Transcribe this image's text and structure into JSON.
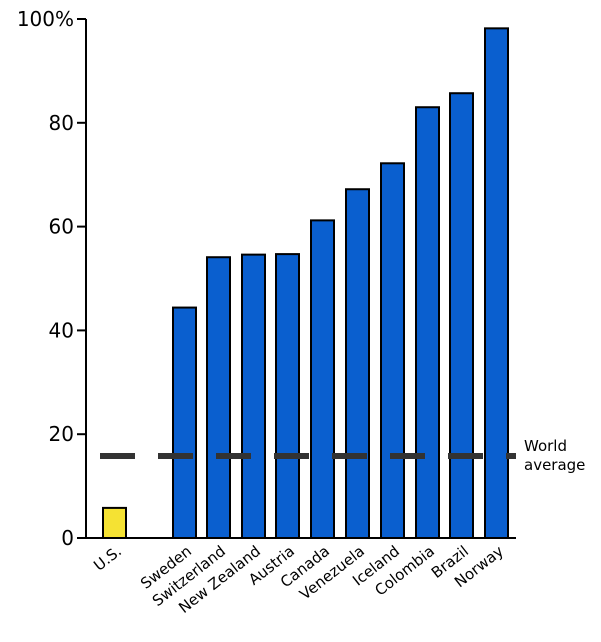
{
  "chart_data": {
    "type": "bar",
    "title": "",
    "xlabel": "",
    "ylabel": "",
    "ylim": [
      0,
      100
    ],
    "y_ticks": [
      0,
      20,
      40,
      60,
      80,
      100
    ],
    "y_tick_labels": [
      "0",
      "20",
      "40",
      "60",
      "80",
      "100%"
    ],
    "categories": [
      "U.S.",
      "Sweden",
      "Switzerland",
      "New Zealand",
      "Austria",
      "Canada",
      "Venezuela",
      "Iceland",
      "Colombia",
      "Brazil",
      "Norway"
    ],
    "values": [
      5.8,
      44.4,
      54.1,
      54.6,
      54.7,
      61.2,
      67.2,
      72.2,
      83.0,
      85.7,
      98.2
    ],
    "bar_colors": [
      "#f5e233",
      "#0a5fcf",
      "#0a5fcf",
      "#0a5fcf",
      "#0a5fcf",
      "#0a5fcf",
      "#0a5fcf",
      "#0a5fcf",
      "#0a5fcf",
      "#0a5fcf",
      "#0a5fcf"
    ],
    "reference_line": {
      "value": 15.8,
      "label_lines": [
        "World",
        "average"
      ],
      "color": "#333333",
      "style": "dashed"
    },
    "grid": false,
    "legend": "none"
  }
}
